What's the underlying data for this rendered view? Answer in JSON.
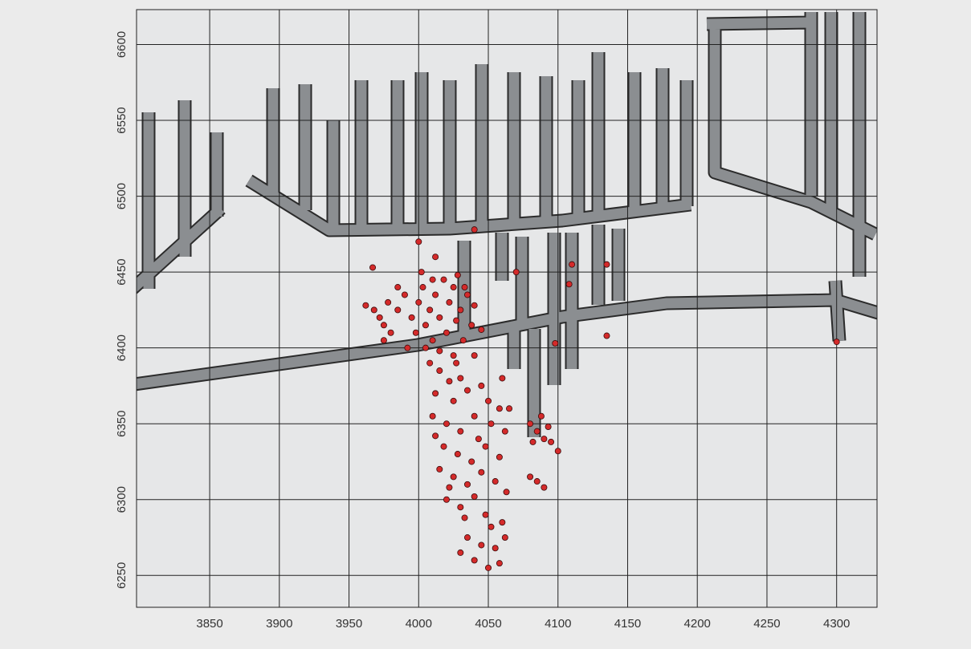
{
  "chart_data": {
    "type": "scatter",
    "xlim": [
      3797.5,
      4329
    ],
    "ylim": [
      6229,
      6623
    ],
    "xticks": [
      3850,
      3900,
      3950,
      4000,
      4050,
      4100,
      4150,
      4200,
      4250,
      4300
    ],
    "yticks": [
      6250,
      6300,
      6350,
      6400,
      6450,
      6500,
      6550,
      6600
    ],
    "grid": true,
    "series": [
      {
        "color": "#d42a2a",
        "x": [
          3962,
          3968,
          3972,
          3975,
          3978,
          3980,
          3985,
          3990,
          3995,
          3998,
          4000,
          4003,
          4005,
          4008,
          4010,
          4012,
          4015,
          4018,
          4020,
          4022,
          4025,
          4027,
          4030,
          4032,
          4035,
          4038,
          4040,
          4010,
          4002,
          3992,
          4015,
          4025,
          4045,
          4000,
          4012,
          4028,
          4033,
          3975,
          3985,
          4005,
          4008,
          4015,
          4022,
          4030,
          4012,
          4025,
          4035,
          4045,
          4050,
          4058,
          4010,
          4020,
          4030,
          4040,
          4052,
          4062,
          4018,
          4028,
          4038,
          4048,
          4058,
          4015,
          4025,
          4035,
          4045,
          4055,
          4020,
          4030,
          4040,
          4048,
          4060,
          4035,
          4045,
          4055,
          4062,
          4040,
          4050,
          4058,
          4030,
          4052,
          4033,
          4022,
          4063,
          4043,
          4012,
          4065,
          4027,
          4040,
          4080,
          4085,
          4090,
          4095,
          4100,
          4088,
          4082,
          4093,
          4080,
          4085,
          4090,
          4040,
          4108,
          4135,
          4060,
          4098,
          4300,
          4110,
          4135,
          3967,
          4070
        ],
        "values": [
          6428,
          6425,
          6420,
          6415,
          6430,
          6410,
          6425,
          6435,
          6420,
          6410,
          6430,
          6440,
          6415,
          6425,
          6405,
          6435,
          6420,
          6445,
          6410,
          6430,
          6440,
          6418,
          6425,
          6405,
          6435,
          6415,
          6428,
          6445,
          6450,
          6400,
          6398,
          6395,
          6412,
          6470,
          6460,
          6448,
          6440,
          6405,
          6440,
          6400,
          6390,
          6385,
          6378,
          6380,
          6370,
          6365,
          6372,
          6375,
          6365,
          6360,
          6355,
          6350,
          6345,
          6355,
          6350,
          6345,
          6335,
          6330,
          6325,
          6335,
          6328,
          6320,
          6315,
          6310,
          6318,
          6312,
          6300,
          6295,
          6302,
          6290,
          6285,
          6275,
          6270,
          6268,
          6275,
          6260,
          6255,
          6258,
          6265,
          6282,
          6288,
          6308,
          6305,
          6340,
          6342,
          6360,
          6390,
          6395,
          6350,
          6345,
          6340,
          6338,
          6332,
          6355,
          6338,
          6348,
          6315,
          6312,
          6308,
          6478,
          6442,
          6408,
          6380,
          6403,
          6404,
          6455,
          6455,
          6453,
          6450
        ]
      }
    ]
  }
}
